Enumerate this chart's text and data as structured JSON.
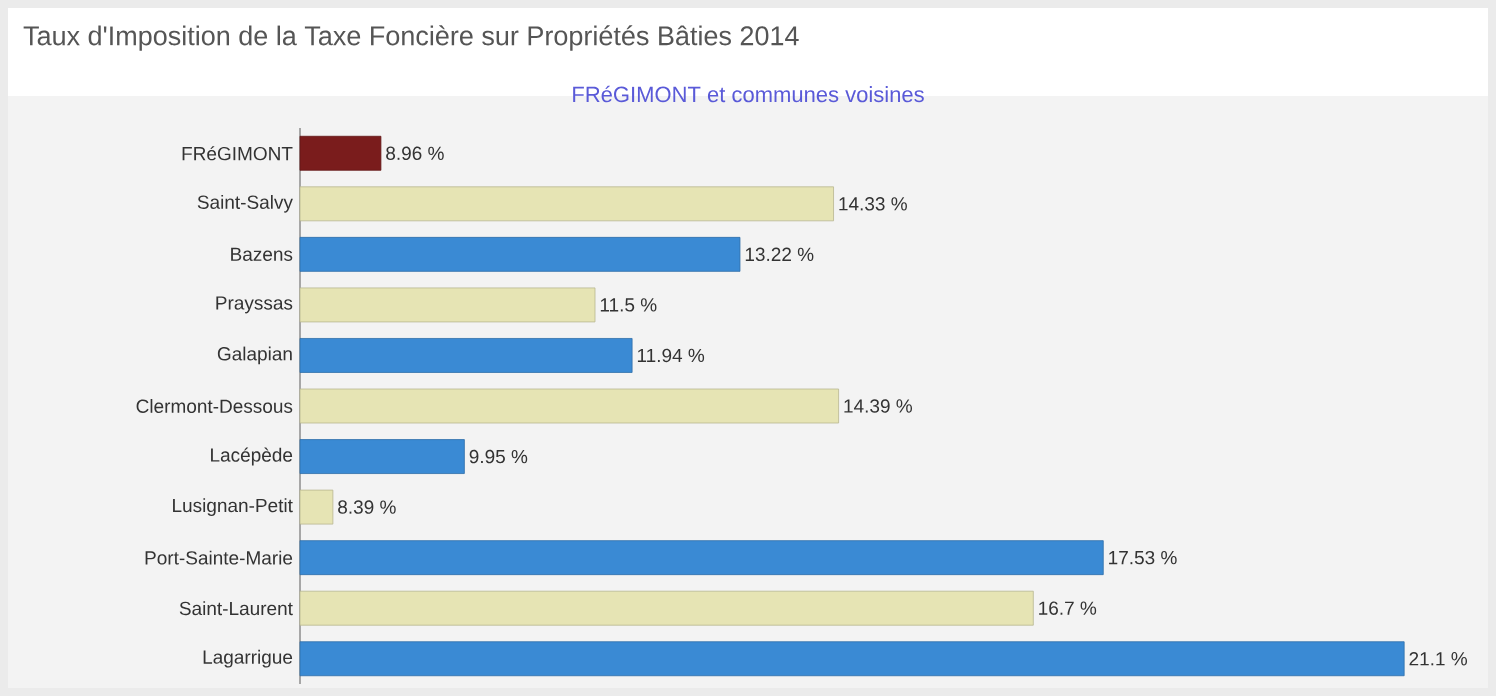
{
  "chart_data": {
    "type": "bar",
    "orientation": "horizontal",
    "title": "Taux d'Imposition de la Taxe Foncière sur Propriétés Bâties 2014",
    "subtitle": "FRéGIMONT et communes voisines",
    "categories": [
      "FRéGIMONT",
      "Saint-Salvy",
      "Bazens",
      "Prayssas",
      "Galapian",
      "Clermont-Dessous",
      "Lacépède",
      "Lusignan-Petit",
      "Port-Sainte-Marie",
      "Saint-Laurent",
      "Lagarrigue"
    ],
    "values": [
      8.96,
      14.33,
      13.22,
      11.5,
      11.94,
      14.39,
      9.95,
      8.39,
      17.53,
      16.7,
      21.1
    ],
    "value_labels": [
      "8.96 %",
      "14.33 %",
      "13.22 %",
      "11.5 %",
      "11.94 %",
      "14.39 %",
      "9.95 %",
      "8.39 %",
      "17.53 %",
      "16.7 %",
      "21.1 %"
    ],
    "colors": [
      "#7a1c1c",
      "#e6e4b4",
      "#3a8ad4",
      "#e6e4b4",
      "#3a8ad4",
      "#e6e4b4",
      "#3a8ad4",
      "#e6e4b4",
      "#3a8ad4",
      "#e6e4b4",
      "#3a8ad4"
    ],
    "xlim": [
      8,
      22
    ],
    "tick_labels": "y"
  }
}
